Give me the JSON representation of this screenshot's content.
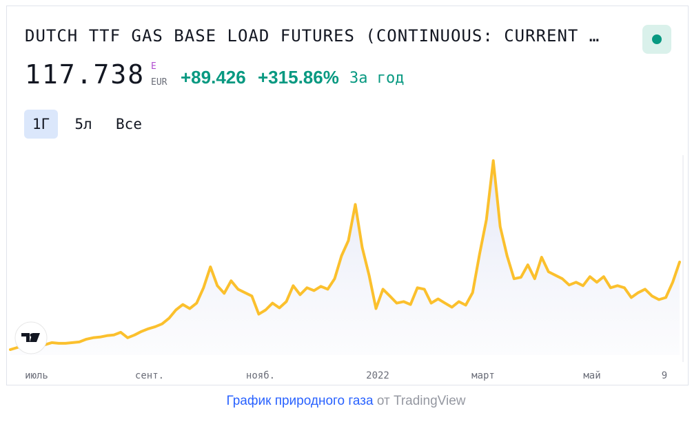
{
  "header": {
    "title": "DUTCH TTF GAS BASE LOAD FUTURES (CONTINUOUS: CURRENT …",
    "price": "117.738",
    "currency_mark": "E",
    "currency": "EUR",
    "change": "+89.426",
    "change_percent": "+315.86%",
    "period": "За год"
  },
  "ranges": [
    "1Г",
    "5л",
    "Все"
  ],
  "chart_data": {
    "type": "line",
    "color": "#fbc02d",
    "values": [
      28.3,
      30.4,
      33.3,
      35.4,
      34.7,
      33.3,
      35.4,
      34.7,
      34.7,
      35.4,
      36.1,
      38.9,
      40.4,
      41.1,
      42.5,
      43.2,
      46.0,
      40.4,
      43.2,
      46.8,
      49.6,
      51.7,
      54.6,
      60.3,
      68.8,
      74.4,
      70.2,
      75.8,
      91.5,
      112.8,
      93.6,
      85.8,
      98.6,
      90.0,
      86.5,
      83.0,
      64.5,
      68.8,
      75.8,
      70.9,
      77.3,
      93.6,
      84.4,
      91.5,
      88.6,
      92.9,
      90.0,
      100.7,
      124.1,
      139.7,
      176.6,
      132.6,
      104.2,
      70.2,
      90.0,
      83.0,
      75.8,
      77.3,
      74.4,
      91.5,
      90.0,
      75.8,
      80.1,
      75.8,
      71.6,
      77.3,
      73.7,
      86.5,
      125.5,
      161.0,
      221.3,
      153.9,
      124.1,
      100.7,
      102.1,
      114.9,
      100.7,
      122.7,
      107.8,
      104.2,
      100.7,
      94.3,
      97.1,
      93.6,
      102.8,
      97.1,
      102.8,
      91.5,
      93.6,
      91.5,
      81.5,
      86.5,
      90.0,
      83.0,
      79.4,
      81.5,
      97.1,
      117.738
    ],
    "x_labels": [
      "июль",
      "сент.",
      "нояб.",
      "2022",
      "март",
      "май",
      "9"
    ]
  },
  "footer": {
    "link": "График природного газа",
    "suffix": "от TradingView"
  }
}
